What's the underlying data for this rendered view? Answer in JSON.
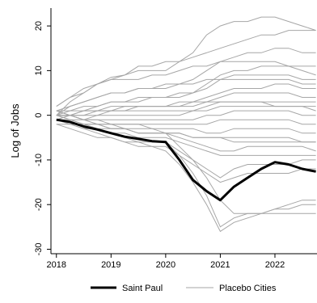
{
  "chart_data": {
    "type": "line",
    "title": "",
    "xlabel": "",
    "ylabel": "Log of Jobs",
    "x": [
      2018,
      2018.25,
      2018.5,
      2018.75,
      2019,
      2019.25,
      2019.5,
      2019.75,
      2020,
      2020.25,
      2020.5,
      2020.75,
      2021,
      2021.25,
      2021.5,
      2021.75,
      2022,
      2022.25,
      2022.5,
      2022.75
    ],
    "xlim": [
      2017.9,
      2022.77
    ],
    "ylim": [
      -31,
      24
    ],
    "xticks": [
      2018,
      2019,
      2020,
      2021,
      2022
    ],
    "xtick_labels": [
      "2018",
      "2019",
      "2020",
      "2021",
      "2022"
    ],
    "yticks": [
      20,
      10,
      0,
      -10,
      -20,
      -30
    ],
    "ytick_labels": [
      "20",
      "10",
      "0",
      "-10",
      "-20",
      "-30"
    ],
    "grid": false,
    "legend_position": "bottom",
    "series": [
      {
        "name": "Saint Paul",
        "color": "#000000",
        "values": [
          -1,
          -1.5,
          -2.5,
          -3.2,
          -4,
          -4.8,
          -5.3,
          -5.8,
          -6,
          -10,
          -14.5,
          -17,
          -19,
          -16,
          -14,
          -12,
          -10.5,
          -11,
          -12,
          -12.6
        ]
      },
      {
        "name": "Placebo Cities",
        "color": "#a6a6a6",
        "members": [
          [
            0,
            3,
            5,
            7,
            8.5,
            9,
            10,
            10,
            10,
            12,
            14,
            18,
            20,
            21,
            21,
            22,
            22,
            21,
            20,
            19
          ],
          [
            2,
            4,
            6,
            7,
            8,
            9,
            11,
            11,
            12,
            12,
            13,
            14,
            15,
            16,
            17,
            18,
            18,
            19,
            19,
            19
          ],
          [
            1,
            2,
            3,
            4,
            5,
            5,
            6,
            6,
            7,
            7,
            8,
            10,
            12,
            13,
            14,
            14,
            15,
            15,
            14,
            14
          ],
          [
            0,
            1,
            2,
            2,
            3,
            3,
            4,
            4,
            4,
            5,
            5,
            7,
            9,
            10,
            10,
            11,
            11,
            11,
            10,
            9
          ],
          [
            -1,
            0,
            1,
            2,
            3,
            3,
            3,
            4,
            4,
            4,
            5,
            6,
            8,
            9,
            9,
            9,
            9,
            9,
            8,
            8
          ],
          [
            0,
            0,
            1,
            1,
            2,
            2,
            2,
            2,
            2,
            3,
            3,
            4,
            5,
            6,
            6,
            6,
            7,
            7,
            6,
            6
          ],
          [
            1,
            1,
            1,
            1,
            1,
            1,
            2,
            2,
            2,
            2,
            2,
            3,
            4,
            5,
            5,
            5,
            5,
            5,
            4,
            4
          ],
          [
            0,
            0,
            0,
            0,
            1,
            1,
            1,
            1,
            1,
            1,
            1,
            2,
            3,
            3,
            3,
            3,
            3,
            3,
            3,
            3
          ],
          [
            -1,
            -1,
            -1,
            0,
            0,
            0,
            0,
            0,
            0,
            0,
            1,
            1,
            2,
            2,
            2,
            2,
            2,
            2,
            2,
            2
          ],
          [
            0,
            0,
            -1,
            -1,
            -1,
            -1,
            -1,
            -1,
            -1,
            -1,
            -1,
            0,
            0,
            1,
            1,
            1,
            1,
            1,
            0,
            0
          ],
          [
            -2,
            -2,
            -2,
            -2,
            -2,
            -2,
            -2,
            -2,
            -2,
            -2,
            -2,
            -2,
            -1,
            -1,
            -1,
            -1,
            -1,
            -1,
            -2,
            -2
          ],
          [
            0,
            0,
            -1,
            -1,
            -2,
            -2,
            -2,
            -3,
            -3,
            -3,
            -3,
            -4,
            -4,
            -3,
            -3,
            -3,
            -3,
            -3,
            -4,
            -4
          ],
          [
            -1,
            -2,
            -2,
            -3,
            -3,
            -3,
            -4,
            -4,
            -4,
            -4,
            -5,
            -5,
            -5,
            -5,
            -5,
            -5,
            -5,
            -5,
            -6,
            -6
          ],
          [
            1,
            0,
            -1,
            -2,
            -2,
            -3,
            -3,
            -3,
            -4,
            -5,
            -6,
            -7,
            -8,
            -8,
            -7,
            -7,
            -7,
            -7,
            -7,
            -8
          ],
          [
            -1,
            -2,
            -3,
            -3,
            -4,
            -4,
            -5,
            -5,
            -5,
            -6,
            -7,
            -8,
            -9,
            -9,
            -9,
            -9,
            -9,
            -9,
            -9,
            -9
          ],
          [
            0,
            -1,
            -2,
            -3,
            -4,
            -5,
            -6,
            -6,
            -6,
            -8,
            -10,
            -12,
            -14,
            -12,
            -11,
            -11,
            -11,
            -11,
            -10,
            -10
          ],
          [
            -2,
            -3,
            -4,
            -5,
            -5,
            -6,
            -7,
            -7,
            -7,
            -9,
            -11,
            -13,
            -15,
            -14,
            -13,
            -13,
            -13,
            -13,
            -12,
            -12
          ],
          [
            1,
            0,
            -1,
            -2,
            -3,
            -3,
            -4,
            -4,
            -4,
            -7,
            -10,
            -14,
            -19,
            -22,
            -22,
            -22,
            -22,
            -22,
            -22,
            -22
          ],
          [
            0,
            -1,
            -2,
            -3,
            -4,
            -5,
            -5,
            -6,
            -6,
            -9,
            -13,
            -18,
            -25,
            -23,
            -22,
            -22,
            -21,
            -21,
            -20,
            -20
          ],
          [
            -1,
            -2,
            -3,
            -4,
            -5,
            -6,
            -6,
            -7,
            -8,
            -11,
            -15,
            -20,
            -26,
            -24,
            -23,
            -22,
            -21,
            -20,
            -19,
            -19
          ],
          [
            2,
            4,
            5,
            7,
            8,
            8,
            8,
            9,
            9,
            10,
            11,
            11,
            12,
            12,
            12,
            12,
            12,
            11,
            11,
            11
          ],
          [
            0,
            2,
            3,
            4,
            5,
            5,
            6,
            6,
            6,
            7,
            7,
            8,
            8,
            8,
            8,
            8,
            8,
            8,
            7,
            7
          ],
          [
            -1,
            0,
            0,
            1,
            1,
            2,
            2,
            2,
            2,
            2,
            3,
            3,
            3,
            3,
            3,
            3,
            2,
            2,
            2,
            1
          ],
          [
            0,
            -1,
            -2,
            -2,
            -3,
            -3,
            -4,
            -4,
            -4,
            -4,
            -5,
            -5,
            -5,
            -6,
            -6,
            -6,
            -6,
            -6,
            -6,
            -6
          ]
        ]
      }
    ]
  },
  "legend": {
    "items": [
      {
        "label": "Saint Paul"
      },
      {
        "label": "Placebo Cities"
      }
    ]
  }
}
